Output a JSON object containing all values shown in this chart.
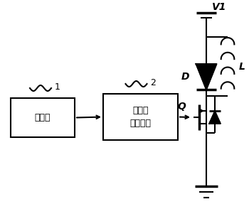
{
  "bg_color": "#ffffff",
  "line_color": "#000000",
  "box1_label": "控制器",
  "box2_label": "开关管\n驱动电路",
  "label1": "1",
  "label2": "2",
  "V1_label": "V1",
  "D_label": "D",
  "L_label": "L",
  "Q_label": "Q",
  "figw": 3.5,
  "figh": 2.87,
  "dpi": 100
}
